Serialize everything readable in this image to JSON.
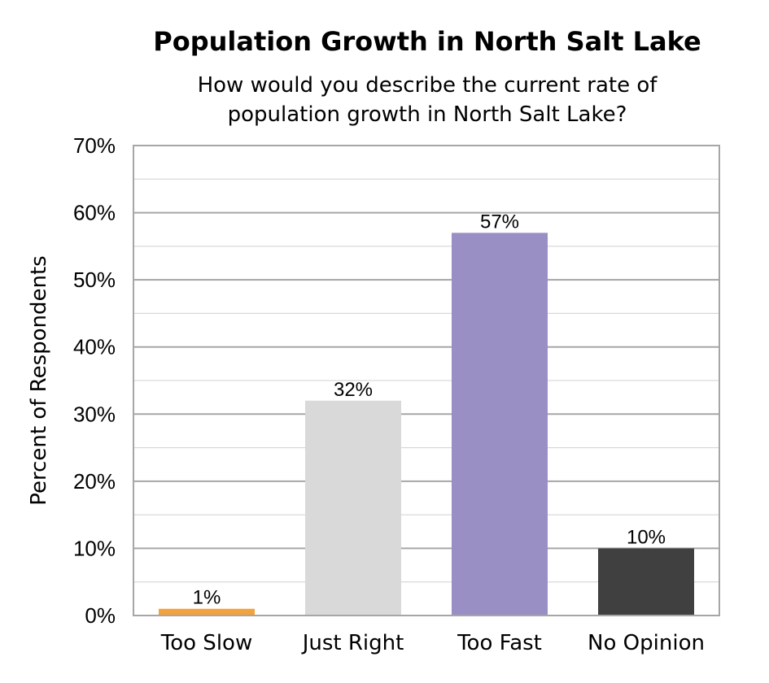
{
  "chart_data": {
    "type": "bar",
    "title": "Population Growth in North Salt Lake",
    "subtitle_lines": [
      "How would you describe the current rate of",
      "population growth in North Salt Lake?"
    ],
    "xlabel": "",
    "ylabel": "Percent of Respondents",
    "categories": [
      "Too Slow",
      "Just Right",
      "Too Fast",
      "No Opinion"
    ],
    "values": [
      1,
      32,
      57,
      10
    ],
    "data_labels": [
      "1%",
      "32%",
      "57%",
      "10%"
    ],
    "colors": [
      "#f4a23c",
      "#d9d9d9",
      "#9a8fc4",
      "#404040"
    ],
    "ylim": [
      0,
      70
    ],
    "yticks": [
      0,
      10,
      20,
      30,
      40,
      50,
      60,
      70
    ],
    "ytick_labels": [
      "0%",
      "10%",
      "20%",
      "30%",
      "40%",
      "50%",
      "60%",
      "70%"
    ],
    "minor_step": 5,
    "grid": true,
    "legend": "none"
  }
}
